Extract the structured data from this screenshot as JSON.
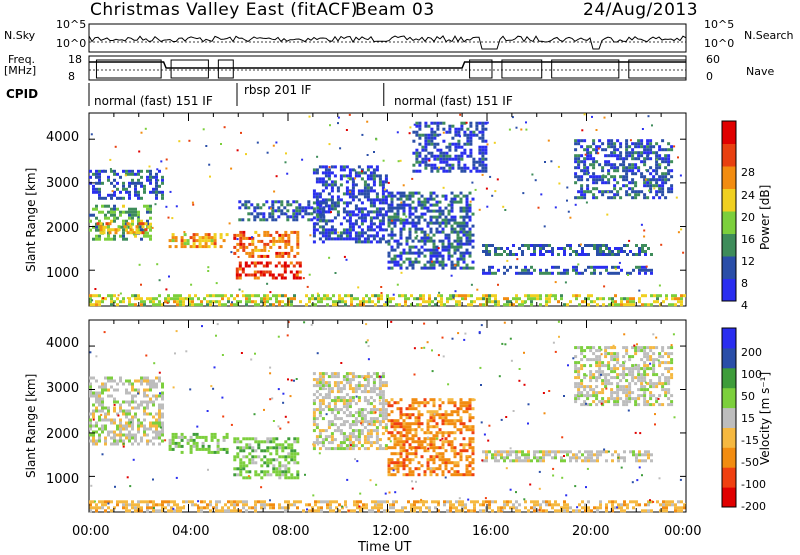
{
  "header": {
    "station": "Christmas Valley East (fitACF)",
    "beam": "Beam 03",
    "date": "24/Aug/2013"
  },
  "panels": {
    "nsky_label": "N.Sky",
    "nsky_ticks": [
      "10^5",
      "10^0"
    ],
    "nsearch_label": "N.Search",
    "nsearch_ticks": [
      "10^5",
      "10^0"
    ],
    "freq_label_1": "Freq.",
    "freq_label_2": "[MHz]",
    "freq_ticks": [
      "18",
      "8"
    ],
    "nave_label": "Nave",
    "nave_ticks": [
      "60",
      "0"
    ],
    "cpid_label": "CPID",
    "cpid_segments": [
      {
        "label": "normal (fast) 151 IF",
        "start_h": 0.0,
        "end_h": 5.95
      },
      {
        "label": "rbsp 201 IF",
        "start_h": 5.95,
        "end_h": 11.85
      },
      {
        "label": "normal (fast) 151 IF",
        "start_h": 11.85,
        "end_h": 24.0
      }
    ]
  },
  "chart_data": [
    {
      "type": "heatmap",
      "name": "power",
      "ylabel": "Slant Range [km]",
      "yticks": [
        1000,
        2000,
        3000,
        4000
      ],
      "ylim": [
        180,
        4600
      ],
      "xlim": [
        0,
        24
      ],
      "colorbar_label": "Power [dB]",
      "colorbar_ticks": [
        "4",
        "8",
        "12",
        "16",
        "20",
        "24",
        "28"
      ],
      "colorbar_range": [
        0,
        32
      ],
      "colors": [
        "#2a2ef0",
        "#2a4ea8",
        "#3e8c5a",
        "#7ccf3c",
        "#f0d020",
        "#f28c10",
        "#e84010",
        "#e00000"
      ],
      "echo_regions": [
        {
          "t0": 0.0,
          "t1": 3.0,
          "r0": 2600,
          "r1": 3300,
          "level": 1.0
        },
        {
          "t0": 0.0,
          "t1": 2.5,
          "r0": 1700,
          "r1": 2500,
          "level": 2.5
        },
        {
          "t0": 0.3,
          "t1": 2.5,
          "r0": 1800,
          "r1": 2100,
          "level": 4.5
        },
        {
          "t0": 3.2,
          "t1": 5.6,
          "r0": 1500,
          "r1": 1850,
          "level": 4.5
        },
        {
          "t0": 5.8,
          "t1": 8.4,
          "r0": 1300,
          "r1": 1900,
          "level": 5.5
        },
        {
          "t0": 5.9,
          "t1": 8.5,
          "r0": 800,
          "r1": 1200,
          "level": 6.5
        },
        {
          "t0": 6.0,
          "t1": 9.5,
          "r0": 2100,
          "r1": 2600,
          "level": 1.0
        },
        {
          "t0": 9.0,
          "t1": 12.0,
          "r0": 1600,
          "r1": 3400,
          "level": 0.6
        },
        {
          "t0": 12.0,
          "t1": 15.5,
          "r0": 1000,
          "r1": 2800,
          "level": 1.0
        },
        {
          "t0": 13.0,
          "t1": 16.0,
          "r0": 3200,
          "r1": 4400,
          "level": 0.6
        },
        {
          "t0": 15.8,
          "t1": 22.7,
          "r0": 1300,
          "r1": 1600,
          "level": 1.2
        },
        {
          "t0": 15.8,
          "t1": 22.7,
          "r0": 900,
          "r1": 1100,
          "level": 1.0
        },
        {
          "t0": 19.5,
          "t1": 23.5,
          "r0": 2600,
          "r1": 4000,
          "level": 1.0
        },
        {
          "t0": 0.0,
          "t1": 24.0,
          "r0": 180,
          "r1": 450,
          "level": 3.5
        }
      ]
    },
    {
      "type": "heatmap",
      "name": "velocity",
      "ylabel": "Slant Range [km]",
      "yticks": [
        1000,
        2000,
        3000,
        4000
      ],
      "ylim": [
        180,
        4600
      ],
      "xlim": [
        0,
        24
      ],
      "xlabel": "Time UT",
      "xticks": [
        "00:00",
        "04:00",
        "08:00",
        "12:00",
        "16:00",
        "20:00",
        "00:00"
      ],
      "colorbar_label": "Velocity [m s⁻¹]",
      "colorbar_ticks": [
        "-200",
        "-100",
        "-50",
        "-15",
        "15",
        "50",
        "100",
        "200"
      ],
      "colors": [
        "#e00000",
        "#f04010",
        "#f28c10",
        "#f5b840",
        "#bdbdbd",
        "#7ccf3c",
        "#3e9c3a",
        "#2a4ea8",
        "#2a2ef0"
      ],
      "echo_regions": [
        {
          "t0": 0.0,
          "t1": 3.0,
          "r0": 1700,
          "r1": 3300,
          "cls": 4
        },
        {
          "t0": 3.2,
          "t1": 5.6,
          "r0": 1500,
          "r1": 2000,
          "cls": 5
        },
        {
          "t0": 5.8,
          "t1": 8.5,
          "r0": 900,
          "r1": 1900,
          "cls": 5
        },
        {
          "t0": 9.0,
          "t1": 12.0,
          "r0": 1600,
          "r1": 3400,
          "cls": 4
        },
        {
          "t0": 12.0,
          "t1": 15.5,
          "r0": 1000,
          "r1": 2800,
          "cls": 2
        },
        {
          "t0": 15.8,
          "t1": 22.7,
          "r0": 1300,
          "r1": 1600,
          "cls": 4
        },
        {
          "t0": 19.5,
          "t1": 23.5,
          "r0": 2600,
          "r1": 4000,
          "cls": 4
        },
        {
          "t0": 0.0,
          "t1": 24.0,
          "r0": 180,
          "r1": 450,
          "cls": 3
        }
      ]
    }
  ]
}
